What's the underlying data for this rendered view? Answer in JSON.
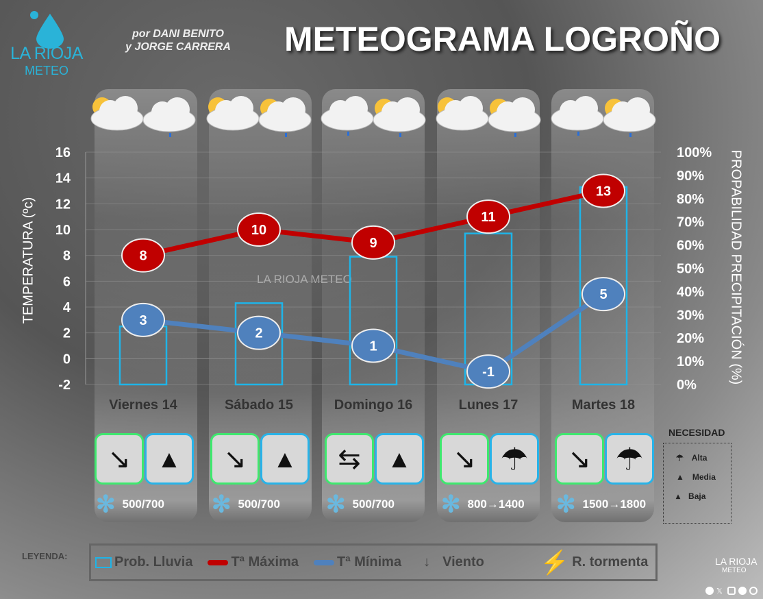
{
  "header": {
    "logo_line1": "LA RIOJA",
    "logo_line2": "METEO",
    "byline1": "por DANI BENITO",
    "byline2": "y JORGE CARRERA",
    "title": "METEOGRAMA LOGROÑO"
  },
  "watermark": "LA RIOJA METEO",
  "chart_data": {
    "type": "line+bar",
    "categories": [
      "Viernes 14",
      "Sábado 15",
      "Domingo 16",
      "Lunes 17",
      "Martes 18"
    ],
    "ylabel": "TEMPERATURA (ºc)",
    "y2label": "PROPABILIDAD PRECIPITACIÓN (%)",
    "ylim": [
      -2,
      16
    ],
    "y2lim": [
      0,
      100
    ],
    "yticks": [
      "16",
      "14",
      "12",
      "10",
      "8",
      "6",
      "4",
      "2",
      "0",
      "-2"
    ],
    "y2ticks": [
      "100%",
      "90%",
      "80%",
      "70%",
      "60%",
      "50%",
      "40%",
      "30%",
      "20%",
      "10%",
      "0%"
    ],
    "series": [
      {
        "name": "Tª Máxima",
        "type": "line",
        "color": "#c00000",
        "values": [
          8,
          10,
          9,
          11,
          13
        ]
      },
      {
        "name": "Tª Mínima",
        "type": "line",
        "color": "#4f81bd",
        "values": [
          3,
          2,
          1,
          -1,
          5
        ]
      },
      {
        "name": "Prob. Lluvia",
        "type": "bar",
        "axis": "right",
        "color": "#1eb4e8",
        "values": [
          25,
          35,
          55,
          65,
          85
        ]
      }
    ]
  },
  "days": [
    {
      "wind": "NW",
      "umbrella": "Media",
      "snow": "500/700",
      "weather": [
        "sun-cloud",
        "cloud-rain"
      ]
    },
    {
      "wind": "NW",
      "umbrella": "Media",
      "snow": "500/700",
      "weather": [
        "sun-cloud",
        "sun-cloud-rain"
      ]
    },
    {
      "wind": "variable",
      "umbrella": "Media",
      "snow": "500/700",
      "weather": [
        "cloud-rain",
        "sun-cloud-rain"
      ]
    },
    {
      "wind": "NW",
      "umbrella": "Alta",
      "snow": "800→1400",
      "weather": [
        "sun-cloud",
        "sun-cloud-rain"
      ]
    },
    {
      "wind": "NW",
      "umbrella": "Alta",
      "snow": "1500→1800",
      "weather": [
        "cloud-rain",
        "sun-cloud-rain"
      ]
    }
  ],
  "necesidad": {
    "title": "NECESIDAD",
    "items": [
      "Alta",
      "Media",
      "Baja"
    ]
  },
  "legend": {
    "label": "LEYENDA:",
    "items": [
      "Prob. Lluvia",
      "Tª Máxima",
      "Tª Mínima",
      "Viento",
      "R. tormenta"
    ]
  },
  "footer": {
    "logo_line1": "LA RIOJA",
    "logo_line2": "METEO",
    "social": [
      "facebook-icon",
      "x-icon",
      "instagram-icon",
      "telegram-icon",
      "whatsapp-icon"
    ]
  }
}
